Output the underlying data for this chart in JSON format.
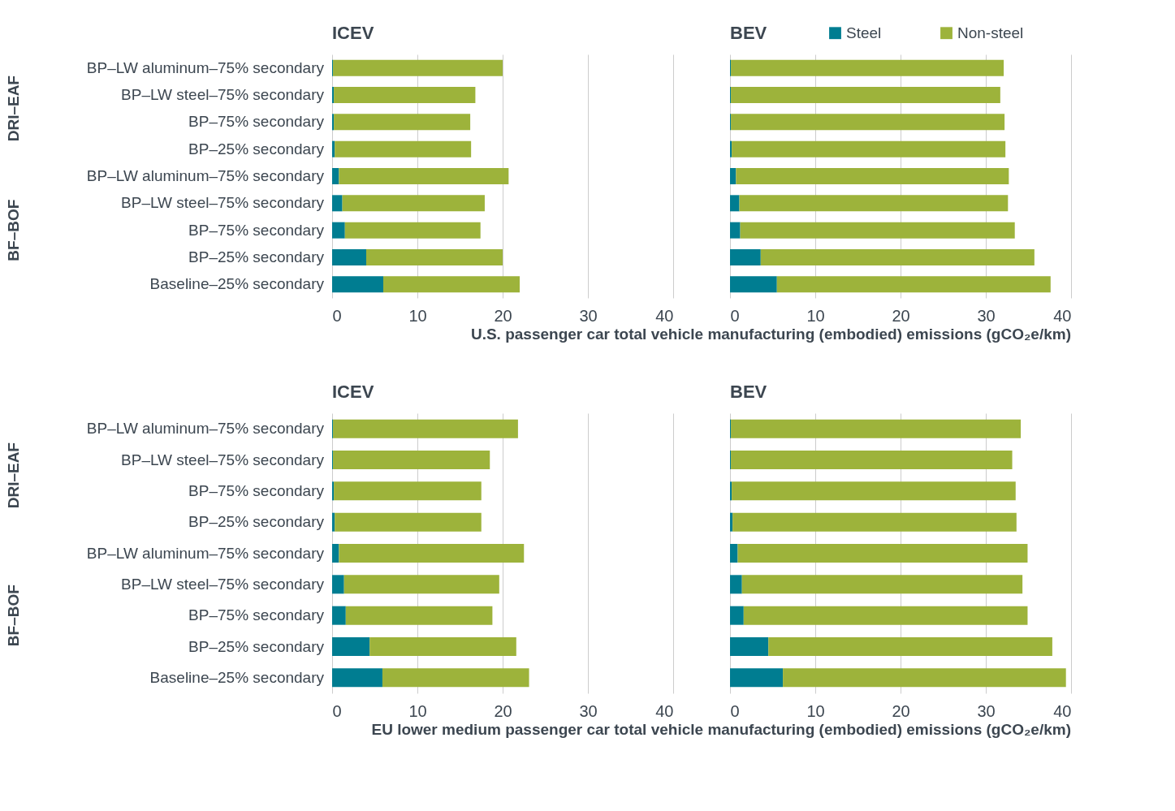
{
  "chart_data": [
    {
      "type": "bar",
      "orientation": "horizontal",
      "stacked": true,
      "title": "ICEV",
      "categories": [
        "BP–LW aluminum–75% secondary",
        "BP–LW steel–75% secondary",
        "BP–75% secondary",
        "BP–25% secondary",
        "BP–LW aluminum–75% secondary",
        "BP–LW steel–75% secondary",
        "BP–75% secondary",
        "BP–25% secondary",
        "Baseline–25% secondary"
      ],
      "series": [
        {
          "color": "#007d91",
          "values": [
            0.1,
            0.2,
            0.2,
            0.3,
            0.8,
            1.2,
            1.5,
            4.0,
            6.0
          ]
        },
        {
          "color": "#9db33b",
          "values": [
            19.9,
            16.6,
            16.0,
            16.0,
            19.9,
            16.7,
            15.9,
            16.0,
            16.0
          ]
        }
      ],
      "xlim": [
        0,
        40
      ],
      "xticks": [
        0,
        10,
        20,
        30,
        40
      ],
      "grid": "x",
      "legend": false,
      "annotations": [
        "DRI–EAF",
        "BF–BOF"
      ],
      "xlabel": "U.S. passenger car total vehicle manufacturing (embodied) emissions (gCO₂e/km)"
    },
    {
      "type": "bar",
      "orientation": "horizontal",
      "stacked": true,
      "title": "BEV",
      "categories": [
        "BP–LW aluminum–75% secondary",
        "BP–LW steel–75% secondary",
        "BP–75% secondary",
        "BP–25% secondary",
        "BP–LW aluminum–75% secondary",
        "BP–LW steel–75% secondary",
        "BP–75% secondary",
        "BP–25% secondary",
        "Baseline–25% secondary"
      ],
      "series": [
        {
          "name": "Steel",
          "color": "#007d91",
          "values": [
            0.1,
            0.1,
            0.1,
            0.2,
            0.7,
            1.1,
            1.2,
            3.6,
            5.5
          ]
        },
        {
          "name": "Non-steel",
          "color": "#9db33b",
          "values": [
            32.0,
            31.6,
            32.1,
            32.1,
            32.0,
            31.5,
            32.2,
            32.1,
            32.1
          ]
        }
      ],
      "xlim": [
        0,
        40
      ],
      "xticks": [
        0,
        10,
        20,
        30,
        40
      ],
      "grid": "x",
      "legend": "top right",
      "tick_labels": "x"
    },
    {
      "type": "bar",
      "orientation": "horizontal",
      "stacked": true,
      "title": "ICEV",
      "categories": [
        "BP–LW aluminum–75% secondary",
        "BP–LW steel–75% secondary",
        "BP–75% secondary",
        "BP–25% secondary",
        "BP–LW aluminum–75% secondary",
        "BP–LW steel–75% secondary",
        "BP–75% secondary",
        "BP–25% secondary",
        "Baseline–25% secondary"
      ],
      "series": [
        {
          "color": "#007d91",
          "values": [
            0.1,
            0.1,
            0.2,
            0.3,
            0.8,
            1.4,
            1.6,
            4.4,
            5.9
          ]
        },
        {
          "color": "#9db33b",
          "values": [
            21.7,
            18.4,
            17.3,
            17.2,
            21.7,
            18.2,
            17.2,
            17.2,
            17.2
          ]
        }
      ],
      "xlim": [
        0,
        40
      ],
      "xticks": [
        0,
        10,
        20,
        30,
        40
      ],
      "grid": "x",
      "legend": false,
      "annotations": [
        "DRI–EAF",
        "BF–BOF"
      ],
      "xlabel": "EU lower medium passenger car total vehicle manufacturing (embodied) emissions (gCO₂e/km)"
    },
    {
      "type": "bar",
      "orientation": "horizontal",
      "stacked": true,
      "title": "BEV",
      "categories": [
        "BP–LW aluminum–75% secondary",
        "BP–LW steel–75% secondary",
        "BP–75% secondary",
        "BP–25% secondary",
        "BP–LW aluminum–75% secondary",
        "BP–LW steel–75% secondary",
        "BP–75% secondary",
        "BP–25% secondary",
        "Baseline–25% secondary"
      ],
      "series": [
        {
          "color": "#007d91",
          "values": [
            0.1,
            0.1,
            0.2,
            0.3,
            0.9,
            1.4,
            1.6,
            4.5,
            6.2
          ]
        },
        {
          "color": "#9db33b",
          "values": [
            34.0,
            33.0,
            33.3,
            33.3,
            34.0,
            32.9,
            33.3,
            33.3,
            33.2
          ]
        }
      ],
      "xlim": [
        0,
        40
      ],
      "xticks": [
        0,
        10,
        20,
        30,
        40
      ],
      "grid": "x",
      "legend": false,
      "tick_labels": "x"
    }
  ]
}
